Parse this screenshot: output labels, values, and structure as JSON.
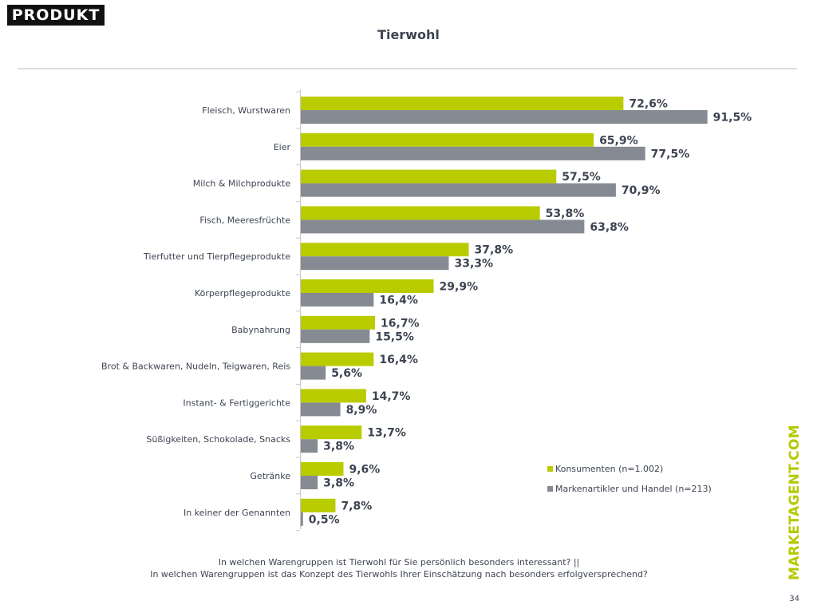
{
  "logo_text": "PRODUKT",
  "title": "Tierwohl",
  "question_lines": [
    "In welchen Warengruppen ist Tierwohl für Sie persönlich besonders interessant? ||",
    "In welchen Warengruppen ist das Konzept des Tierwohls Ihrer Einschätzung nach besonders erfolgversprechend?"
  ],
  "brand": "MARKETAGENT.COM",
  "page_number": "34",
  "colors": {
    "green": "#b9cc00",
    "gray": "#868b93",
    "text": "#3d4451"
  },
  "chart_data": {
    "type": "bar",
    "orientation": "horizontal",
    "title": "Tierwohl",
    "categories": [
      "Fleisch, Wurstwaren",
      "Eier",
      "Milch & Milchprodukte",
      "Fisch, Meeresfrüchte",
      "Tierfutter und Tierpflegeprodukte",
      "Körperpflegeprodukte",
      "Babynahrung",
      "Brot & Backwaren, Nudeln, Teigwaren, Reis",
      "Instant- & Fertiggerichte",
      "Süßigkeiten, Schokolade, Snacks",
      "Getränke",
      "In keiner der Genannten"
    ],
    "series": [
      {
        "name": "Konsumenten (n=1.002)",
        "color": "#b9cc00",
        "values": [
          72.6,
          65.9,
          57.5,
          53.8,
          37.8,
          29.9,
          16.7,
          16.4,
          14.7,
          13.7,
          9.6,
          7.8
        ],
        "labels": [
          "72,6%",
          "65,9%",
          "57,5%",
          "53,8%",
          "37,8%",
          "29,9%",
          "16,7%",
          "16,4%",
          "14,7%",
          "13,7%",
          "9,6%",
          "7,8%"
        ]
      },
      {
        "name": "Markenartikler und Handel (n=213)",
        "color": "#868b93",
        "values": [
          91.5,
          77.5,
          70.9,
          63.8,
          33.3,
          16.4,
          15.5,
          5.6,
          8.9,
          3.8,
          3.8,
          0.5
        ],
        "labels": [
          "91,5%",
          "77,5%",
          "70,9%",
          "63,8%",
          "33,3%",
          "16,4%",
          "15,5%",
          "5,6%",
          "8,9%",
          "3,8%",
          "3,8%",
          "0,5%"
        ]
      }
    ],
    "xlim": [
      0,
      100
    ],
    "legend_position": "bottom-right",
    "grid": false
  }
}
